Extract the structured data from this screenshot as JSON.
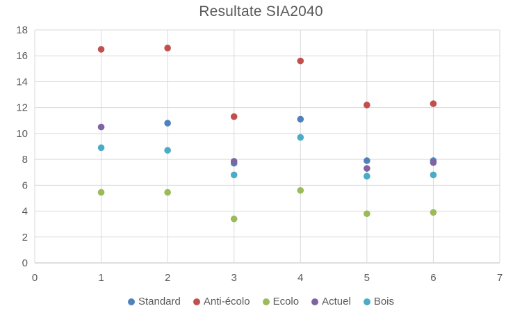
{
  "chart_data": {
    "type": "scatter",
    "title": "Resultate SIA2040",
    "xlabel": "",
    "ylabel": "",
    "x": [
      1,
      2,
      3,
      4,
      5,
      6
    ],
    "series": [
      {
        "name": "Standard",
        "color": "#4F81BD",
        "values": [
          null,
          10.8,
          7.7,
          11.1,
          7.9,
          7.9
        ]
      },
      {
        "name": "Anti-écolo",
        "color": "#C0504D",
        "values": [
          16.5,
          16.6,
          11.3,
          15.6,
          12.2,
          12.3
        ]
      },
      {
        "name": "Ecolo",
        "color": "#9BBB59",
        "values": [
          5.45,
          5.45,
          3.4,
          5.6,
          3.8,
          3.9
        ]
      },
      {
        "name": "Actuel",
        "color": "#8064A2",
        "values": [
          10.5,
          null,
          7.85,
          null,
          7.3,
          7.75
        ]
      },
      {
        "name": "Bois",
        "color": "#4BACC6",
        "values": [
          8.9,
          8.7,
          6.8,
          9.7,
          6.7,
          6.8
        ]
      }
    ],
    "xlim": [
      0,
      7
    ],
    "ylim": [
      0,
      18
    ],
    "x_ticks": [
      0,
      1,
      2,
      3,
      4,
      5,
      6,
      7
    ],
    "y_ticks": [
      0,
      2,
      4,
      6,
      8,
      10,
      12,
      14,
      16,
      18
    ],
    "grid": true,
    "legend_position": "bottom",
    "marker": "circle"
  },
  "styles": {
    "title_color": "#595959",
    "axis_label_color": "#595959",
    "gridline_color": "#D9D9D9",
    "axis_line_color": "#BFBFBF"
  }
}
